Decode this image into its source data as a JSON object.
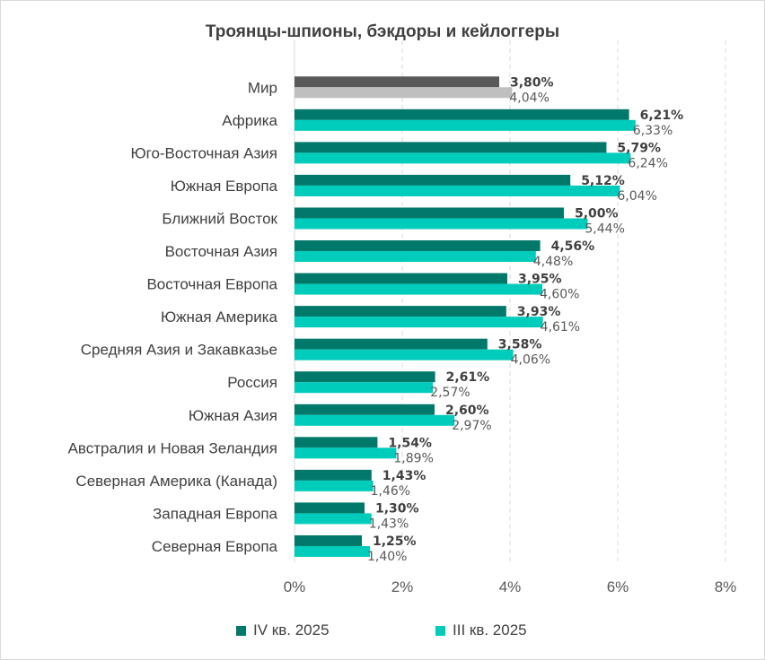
{
  "chart_data": {
    "type": "bar",
    "orientation": "horizontal",
    "title": "Троянцы-шпионы, бэкдоры и кейлоггеры",
    "categories": [
      "Мир",
      "Африка",
      "Юго-Восточная Азия",
      "Южная Европа",
      "Ближний Восток",
      "Восточная Азия",
      "Восточная Европа",
      "Южная Америка",
      "Средняя Азия и Закавказье",
      "Россия",
      "Южная Азия",
      "Австралия и Новая Зеландия",
      "Северная Америка (Канада)",
      "Западная Европа",
      "Северная Европа"
    ],
    "series": [
      {
        "name": "IV кв. 2025",
        "values": [
          3.8,
          6.21,
          5.79,
          5.12,
          5.0,
          4.56,
          3.95,
          3.93,
          3.58,
          2.61,
          2.6,
          1.54,
          1.43,
          1.3,
          1.25
        ],
        "labels": [
          "3,80%",
          "6,21%",
          "5,79%",
          "5,12%",
          "5,00%",
          "4,56%",
          "3,95%",
          "3,93%",
          "3,58%",
          "2,61%",
          "2,60%",
          "1,54%",
          "1,43%",
          "1,30%",
          "1,25%"
        ],
        "color": "#00786a",
        "highlight_color": "#595959"
      },
      {
        "name": "III кв. 2025",
        "values": [
          4.04,
          6.33,
          6.24,
          6.04,
          5.44,
          4.48,
          4.6,
          4.61,
          4.06,
          2.57,
          2.97,
          1.89,
          1.46,
          1.43,
          1.4
        ],
        "labels": [
          "4,04%",
          "6,33%",
          "6,24%",
          "6,04%",
          "5,44%",
          "4,48%",
          "4,60%",
          "4,61%",
          "4,06%",
          "2,57%",
          "2,97%",
          "1,89%",
          "1,46%",
          "1,43%",
          "1,40%"
        ],
        "color": "#00ccbb",
        "highlight_color": "#bfbfbf"
      }
    ],
    "xlim": [
      0,
      8
    ],
    "x_ticks": [
      "0%",
      "2%",
      "4%",
      "6%",
      "8%"
    ],
    "grid": true,
    "legend_position": "bottom",
    "highlighted_category": "Мир"
  }
}
